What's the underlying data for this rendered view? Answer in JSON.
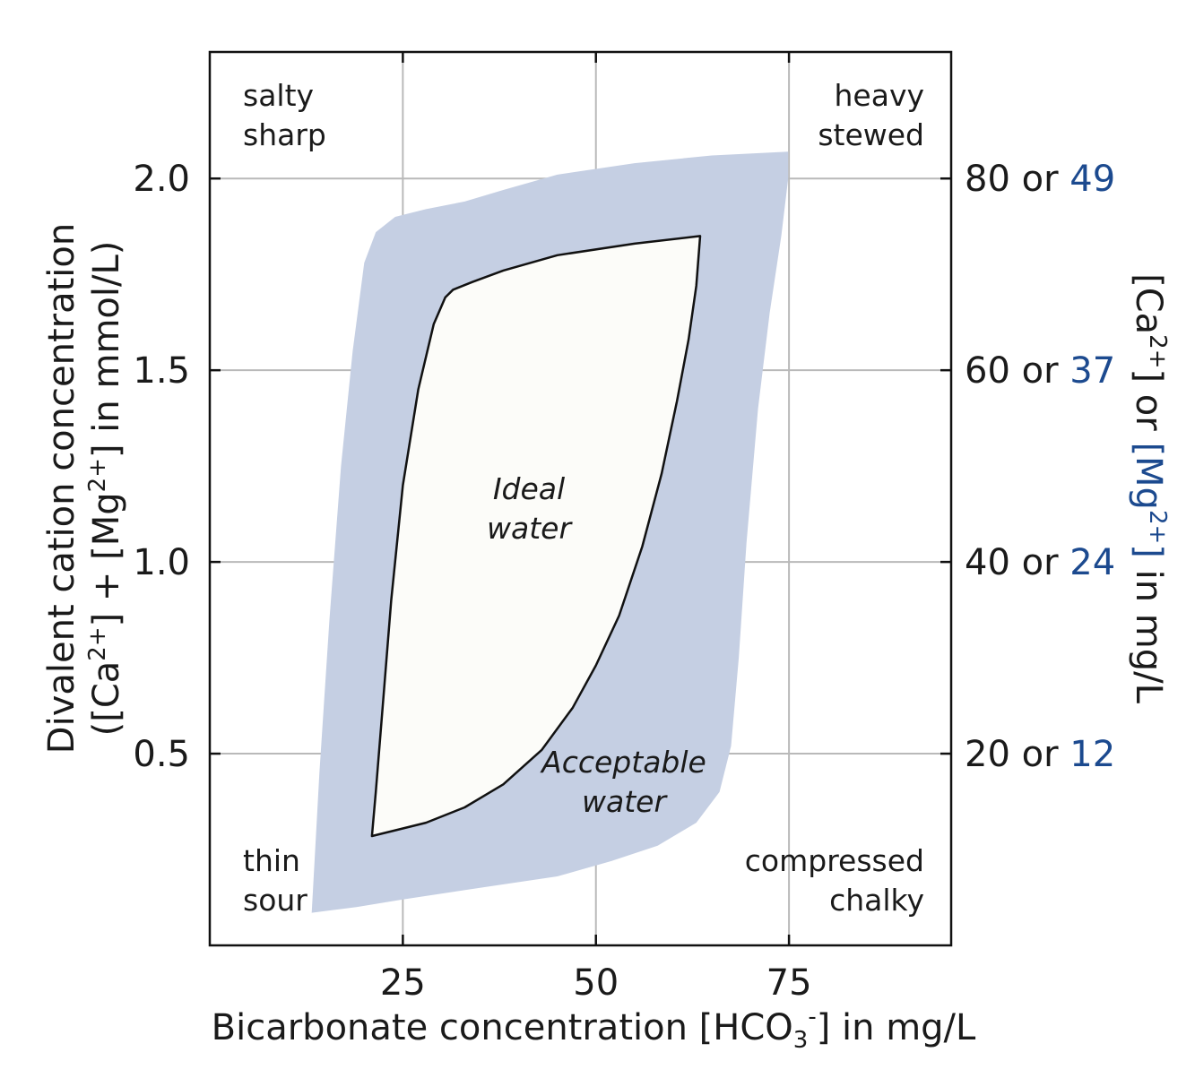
{
  "chart_data": {
    "type": "area",
    "xlabel": {
      "prefix": "Bicarbonate concentration [HCO",
      "sub": "3",
      "sup": "-",
      "suffix": "] in mg/L"
    },
    "ylabel": {
      "line1": "Divalent cation concentration",
      "line2_a": "([Ca",
      "line2_sup1": "2+",
      "line2_b": "] + [Mg",
      "line2_sup2": "2+",
      "line2_c": "] in mmol/L)"
    },
    "y2label": {
      "a": "[Ca",
      "sup1": "2+",
      "b": "] or ",
      "c": "[Mg",
      "sup2": "2+",
      "d": "]",
      "e": " in mg/L"
    },
    "xlim": [
      0,
      96
    ],
    "ylim": [
      0,
      2.33
    ],
    "grid": true,
    "x_ticks": [
      {
        "value": 25,
        "label": "25"
      },
      {
        "value": 50,
        "label": "50"
      },
      {
        "value": 75,
        "label": "75"
      }
    ],
    "y_ticks": [
      {
        "value": 0.5,
        "label": "0.5"
      },
      {
        "value": 1.0,
        "label": "1.0"
      },
      {
        "value": 1.5,
        "label": "1.5"
      },
      {
        "value": 2.0,
        "label": "2.0"
      }
    ],
    "y2_ticks": [
      {
        "value": 0.5,
        "ca": "20",
        "sep": " or ",
        "mg": "12"
      },
      {
        "value": 1.0,
        "ca": "40",
        "sep": " or ",
        "mg": "24"
      },
      {
        "value": 1.5,
        "ca": "60",
        "sep": " or ",
        "mg": "37"
      },
      {
        "value": 2.0,
        "ca": "80",
        "sep": " or ",
        "mg": "49"
      }
    ],
    "regions": [
      {
        "name": "Acceptable water",
        "label_lines": [
          "Acceptable",
          "water"
        ],
        "color": "#c5cfe3",
        "outline": [
          [
            13.2,
            0.085
          ],
          [
            19,
            0.1
          ],
          [
            25,
            0.12
          ],
          [
            35,
            0.15
          ],
          [
            45,
            0.18
          ],
          [
            52,
            0.22
          ],
          [
            58,
            0.26
          ],
          [
            63,
            0.32
          ],
          [
            66,
            0.4
          ],
          [
            67.5,
            0.52
          ],
          [
            68.5,
            0.75
          ],
          [
            69.5,
            1.05
          ],
          [
            71,
            1.4
          ],
          [
            72.5,
            1.65
          ],
          [
            74,
            1.85
          ],
          [
            74.9,
            2.0
          ],
          [
            74.9,
            2.07
          ],
          [
            65,
            2.06
          ],
          [
            55,
            2.04
          ],
          [
            45,
            2.01
          ],
          [
            38,
            1.97
          ],
          [
            33,
            1.94
          ],
          [
            28,
            1.92
          ],
          [
            24,
            1.9
          ],
          [
            21.5,
            1.86
          ],
          [
            20,
            1.78
          ],
          [
            18.5,
            1.55
          ],
          [
            17,
            1.25
          ],
          [
            15.5,
            0.85
          ],
          [
            14.2,
            0.45
          ],
          [
            13.2,
            0.085
          ]
        ]
      },
      {
        "name": "Ideal water",
        "label_lines": [
          "Ideal",
          "water"
        ],
        "color": "#fcfcf9",
        "outline": [
          [
            21,
            0.285
          ],
          [
            24,
            0.3
          ],
          [
            28,
            0.32
          ],
          [
            33,
            0.36
          ],
          [
            38,
            0.42
          ],
          [
            43,
            0.51
          ],
          [
            47,
            0.62
          ],
          [
            50,
            0.73
          ],
          [
            53,
            0.86
          ],
          [
            56,
            1.04
          ],
          [
            58.5,
            1.23
          ],
          [
            60.5,
            1.42
          ],
          [
            62,
            1.58
          ],
          [
            63,
            1.72
          ],
          [
            63.5,
            1.85
          ],
          [
            55,
            1.83
          ],
          [
            45,
            1.8
          ],
          [
            38,
            1.76
          ],
          [
            34,
            1.73
          ],
          [
            31.5,
            1.71
          ],
          [
            30.5,
            1.69
          ],
          [
            29,
            1.62
          ],
          [
            27,
            1.45
          ],
          [
            25,
            1.2
          ],
          [
            23.5,
            0.9
          ],
          [
            22.3,
            0.6
          ],
          [
            21.5,
            0.4
          ],
          [
            21,
            0.285
          ]
        ]
      }
    ],
    "corner_labels": [
      {
        "lines": [
          "salty",
          "sharp"
        ],
        "position": "top-left"
      },
      {
        "lines": [
          "heavy",
          "stewed"
        ],
        "position": "top-right"
      },
      {
        "lines": [
          "thin",
          "sour"
        ],
        "position": "bottom-left"
      },
      {
        "lines": [
          "compressed",
          "chalky"
        ],
        "position": "bottom-right"
      }
    ]
  }
}
